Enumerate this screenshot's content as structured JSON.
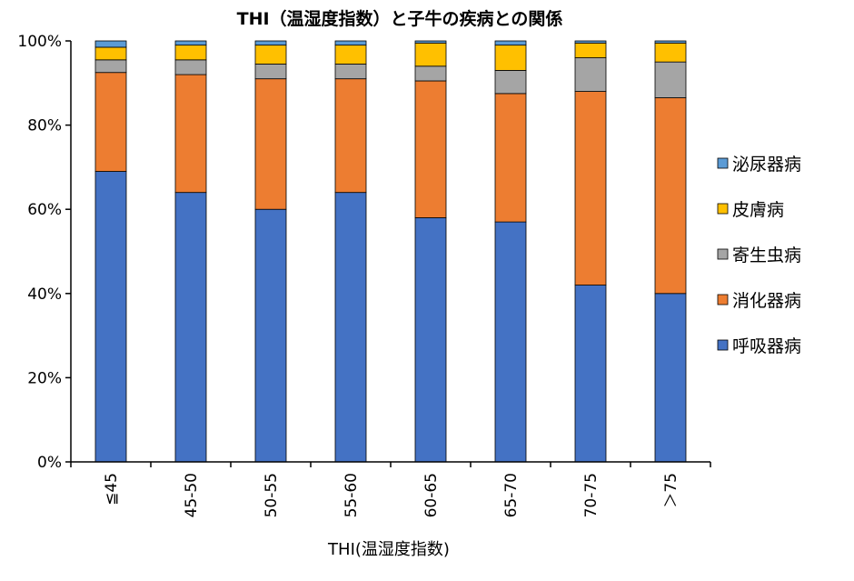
{
  "chart_data": {
    "type": "bar",
    "stacked": true,
    "title": "THI（温湿度指数）と子牛の疾病との関係",
    "xlabel": "THI(温湿度指数)",
    "ylabel": "",
    "ylim": [
      0,
      100
    ],
    "yticks": [
      "0%",
      "20%",
      "40%",
      "60%",
      "80%",
      "100%"
    ],
    "categories": [
      "≦45",
      "45-50",
      "50-55",
      "55-60",
      "60-65",
      "65-70",
      "70-75",
      "＞75"
    ],
    "series": [
      {
        "name": "呼吸器病",
        "color": "#4472C4",
        "values": [
          69,
          64,
          60,
          64,
          58,
          57,
          42,
          40
        ]
      },
      {
        "name": "消化器病",
        "color": "#ED7D31",
        "values": [
          23.5,
          28,
          31,
          27,
          32.5,
          30.5,
          46,
          46.5
        ]
      },
      {
        "name": "寄生虫病",
        "color": "#A5A5A5",
        "values": [
          3,
          3.5,
          3.5,
          3.5,
          3.5,
          5.5,
          8,
          8.5
        ]
      },
      {
        "name": "皮膚病",
        "color": "#FFC000",
        "values": [
          3,
          3.5,
          4.5,
          4.5,
          5.5,
          6,
          3.5,
          4.5
        ]
      },
      {
        "name": "泌尿器病",
        "color": "#5B9BD5",
        "values": [
          1.5,
          1,
          1,
          1,
          0.5,
          1,
          0.5,
          0.5
        ]
      }
    ],
    "legend_position": "right",
    "grid": false
  }
}
